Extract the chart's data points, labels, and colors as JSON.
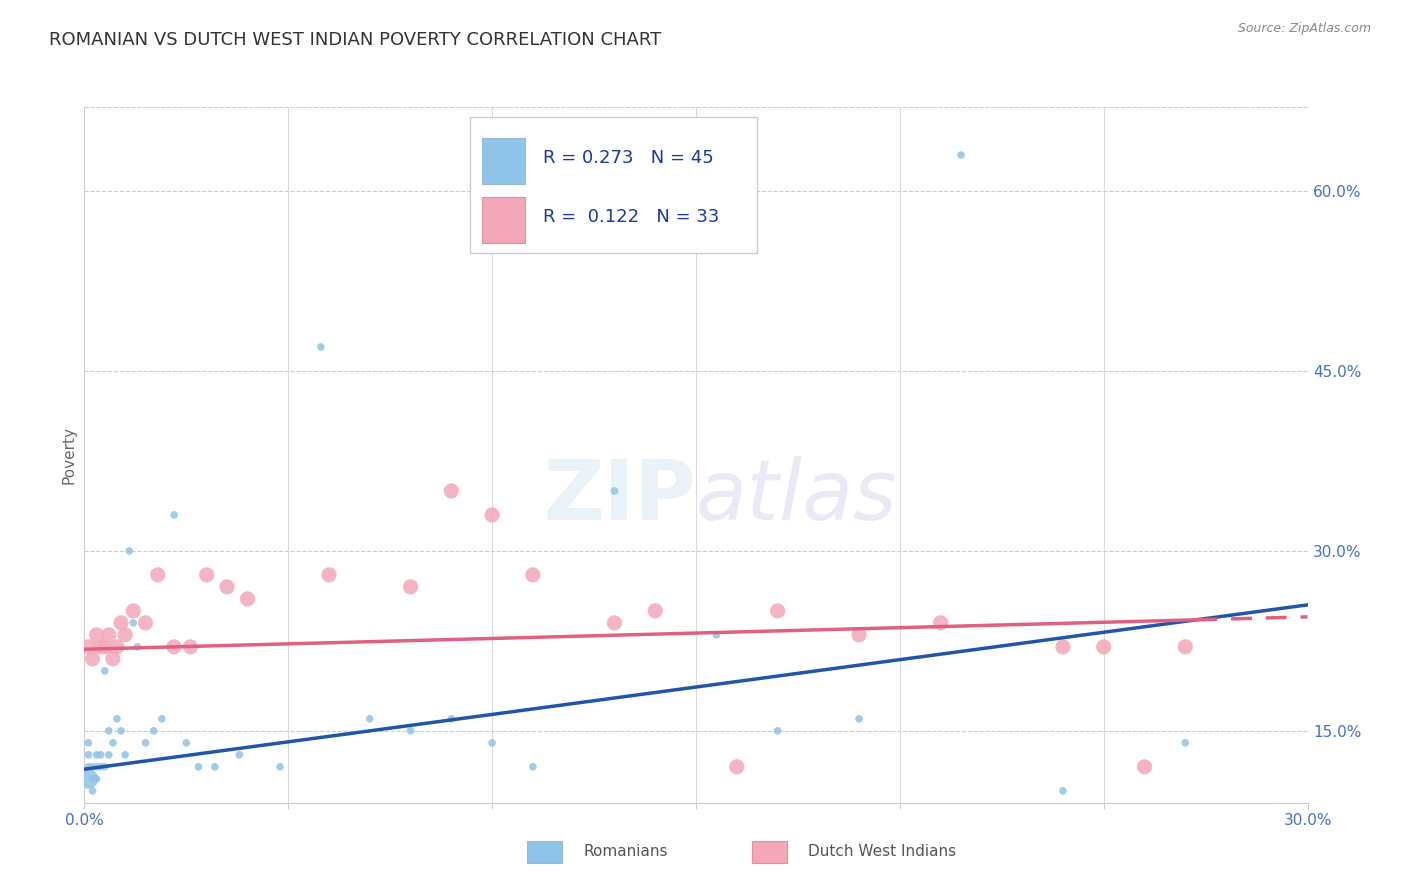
{
  "title": "ROMANIAN VS DUTCH WEST INDIAN POVERTY CORRELATION CHART",
  "source": "Source: ZipAtlas.com",
  "ylabel": "Poverty",
  "xlim": [
    0.0,
    0.3
  ],
  "ylim": [
    0.09,
    0.67
  ],
  "ytick_positions": [
    0.15,
    0.3,
    0.45,
    0.6
  ],
  "ytick_labels": [
    "15.0%",
    "30.0%",
    "45.0%",
    "60.0%"
  ],
  "blue_color": "#8ec4e8",
  "pink_color": "#f4a7b9",
  "blue_line_color": "#2255aa",
  "pink_line_color": "#e06080",
  "background_color": "#ffffff",
  "grid_color": "#cccccc",
  "legend_R1": "R = 0.273",
  "legend_N1": "N = 45",
  "legend_R2": "R =  0.122",
  "legend_N2": "N = 33",
  "legend_label1": "Romanians",
  "legend_label2": "Dutch West Indians",
  "title_fontsize": 13,
  "axis_label_fontsize": 11,
  "tick_fontsize": 11,
  "romanians_x": [
    0.001,
    0.001,
    0.001,
    0.001,
    0.002,
    0.002,
    0.002,
    0.003,
    0.003,
    0.003,
    0.004,
    0.004,
    0.005,
    0.005,
    0.006,
    0.006,
    0.007,
    0.008,
    0.009,
    0.01,
    0.011,
    0.012,
    0.013,
    0.015,
    0.017,
    0.019,
    0.022,
    0.025,
    0.028,
    0.032,
    0.038,
    0.048,
    0.058,
    0.07,
    0.08,
    0.09,
    0.1,
    0.11,
    0.13,
    0.155,
    0.17,
    0.19,
    0.215,
    0.24,
    0.27
  ],
  "romanians_y": [
    0.11,
    0.12,
    0.13,
    0.14,
    0.1,
    0.11,
    0.12,
    0.11,
    0.12,
    0.13,
    0.12,
    0.13,
    0.12,
    0.2,
    0.13,
    0.15,
    0.14,
    0.16,
    0.15,
    0.13,
    0.3,
    0.24,
    0.22,
    0.14,
    0.15,
    0.16,
    0.33,
    0.14,
    0.12,
    0.12,
    0.13,
    0.12,
    0.47,
    0.16,
    0.15,
    0.16,
    0.14,
    0.12,
    0.35,
    0.23,
    0.15,
    0.16,
    0.63,
    0.1,
    0.14
  ],
  "romanians_size": [
    200,
    30,
    30,
    30,
    30,
    30,
    30,
    30,
    30,
    30,
    30,
    30,
    30,
    30,
    30,
    30,
    30,
    30,
    30,
    30,
    30,
    30,
    30,
    30,
    30,
    30,
    30,
    30,
    30,
    30,
    30,
    30,
    30,
    30,
    30,
    30,
    30,
    30,
    30,
    30,
    30,
    30,
    30,
    30,
    30
  ],
  "dutch_x": [
    0.001,
    0.002,
    0.003,
    0.004,
    0.005,
    0.006,
    0.007,
    0.008,
    0.009,
    0.01,
    0.012,
    0.015,
    0.018,
    0.022,
    0.026,
    0.03,
    0.035,
    0.04,
    0.06,
    0.08,
    0.09,
    0.1,
    0.11,
    0.13,
    0.14,
    0.16,
    0.17,
    0.19,
    0.21,
    0.24,
    0.25,
    0.26,
    0.27
  ],
  "dutch_y": [
    0.22,
    0.21,
    0.23,
    0.22,
    0.22,
    0.23,
    0.21,
    0.22,
    0.24,
    0.23,
    0.25,
    0.24,
    0.28,
    0.22,
    0.22,
    0.28,
    0.27,
    0.26,
    0.28,
    0.27,
    0.35,
    0.33,
    0.28,
    0.24,
    0.25,
    0.12,
    0.25,
    0.23,
    0.24,
    0.22,
    0.22,
    0.12,
    0.22
  ],
  "blue_line_x0": 0.0,
  "blue_line_y0": 0.118,
  "blue_line_x1": 0.3,
  "blue_line_y1": 0.255,
  "pink_line_x0": 0.0,
  "pink_line_y0": 0.218,
  "pink_line_x1": 0.3,
  "pink_line_y1": 0.245
}
